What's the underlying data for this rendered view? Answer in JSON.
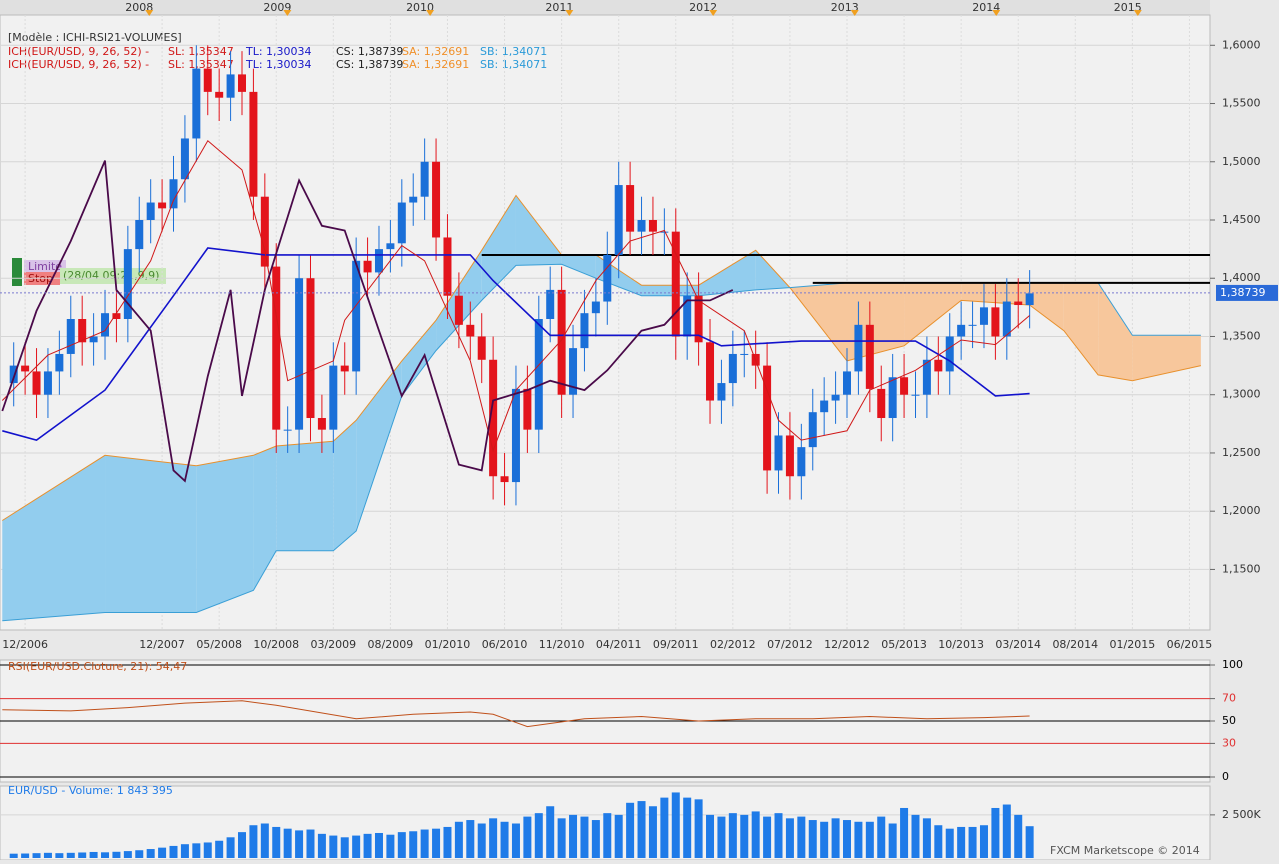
{
  "header": {
    "model": "[Modèle : ICHI-RSI21-VOLUMES]",
    "indicator_lines": [
      [
        "ICH(EUR/USD, 9, 26, 52) -",
        "SL: 1,35347",
        "TL: 1,30034",
        "CS: 1,38739",
        "SA: 1,32691",
        "SB: 1,34071"
      ],
      [
        "ICH(EUR/USD, 9, 26, 52) -",
        "SL: 1,35347",
        "TL: 1,30034",
        "CS: 1,38739",
        "SA: 1,32691",
        "SB: 1,34071"
      ]
    ],
    "indicator_colors": [
      "#d01818",
      "#d01818",
      "#1818c8",
      "#202020",
      "#f0902a",
      "#2a9ad8"
    ]
  },
  "orders": {
    "limit": "Limite",
    "stop": "Stop",
    "info": "(28/04 09:21,9,9)"
  },
  "chart_data": [
    {
      "type": "candlestick",
      "open": [
        1.31,
        1.325,
        1.32,
        1.3,
        1.32,
        1.335,
        1.365,
        1.345,
        1.35,
        1.37,
        1.365,
        1.425,
        1.45,
        1.465,
        1.46,
        1.485,
        1.52,
        1.58,
        1.56,
        1.555,
        1.575,
        1.56,
        1.47,
        1.41,
        1.27,
        1.27,
        1.4,
        1.28,
        1.27,
        1.325,
        1.32,
        1.415,
        1.405,
        1.425,
        1.43,
        1.465,
        1.47,
        1.5,
        1.435,
        1.385,
        1.36,
        1.35,
        1.33,
        1.23,
        1.225,
        1.305,
        1.27,
        1.365,
        1.39,
        1.3,
        1.34,
        1.37,
        1.38,
        1.42,
        1.48,
        1.44,
        1.45,
        1.44,
        1.44,
        1.35,
        1.385,
        1.345,
        1.295,
        1.31,
        1.335,
        1.335,
        1.325,
        1.235,
        1.265,
        1.23,
        1.255,
        1.285,
        1.295,
        1.3,
        1.32,
        1.36,
        1.305,
        1.28,
        1.315,
        1.3,
        1.3,
        1.33,
        1.32,
        1.35,
        1.36,
        1.36,
        1.375,
        1.35,
        1.38,
        1.377
      ],
      "high": [
        1.345,
        1.345,
        1.34,
        1.34,
        1.355,
        1.385,
        1.385,
        1.37,
        1.39,
        1.39,
        1.445,
        1.47,
        1.485,
        1.485,
        1.505,
        1.54,
        1.6,
        1.6,
        1.58,
        1.595,
        1.595,
        1.58,
        1.49,
        1.43,
        1.29,
        1.42,
        1.42,
        1.3,
        1.345,
        1.345,
        1.435,
        1.435,
        1.445,
        1.45,
        1.485,
        1.49,
        1.52,
        1.52,
        1.455,
        1.405,
        1.38,
        1.37,
        1.35,
        1.25,
        1.325,
        1.325,
        1.385,
        1.41,
        1.41,
        1.36,
        1.39,
        1.4,
        1.44,
        1.5,
        1.5,
        1.47,
        1.47,
        1.46,
        1.46,
        1.405,
        1.405,
        1.365,
        1.33,
        1.355,
        1.355,
        1.355,
        1.345,
        1.285,
        1.285,
        1.275,
        1.305,
        1.315,
        1.32,
        1.34,
        1.38,
        1.38,
        1.325,
        1.335,
        1.335,
        1.32,
        1.35,
        1.35,
        1.37,
        1.38,
        1.38,
        1.395,
        1.395,
        1.4,
        1.4,
        1.407
      ],
      "low": [
        1.29,
        1.3,
        1.28,
        1.28,
        1.3,
        1.315,
        1.325,
        1.325,
        1.33,
        1.345,
        1.345,
        1.405,
        1.43,
        1.44,
        1.44,
        1.465,
        1.5,
        1.54,
        1.535,
        1.535,
        1.54,
        1.45,
        1.39,
        1.25,
        1.25,
        1.25,
        1.26,
        1.25,
        1.25,
        1.3,
        1.3,
        1.385,
        1.385,
        1.405,
        1.41,
        1.445,
        1.45,
        1.415,
        1.365,
        1.34,
        1.33,
        1.31,
        1.21,
        1.205,
        1.205,
        1.25,
        1.25,
        1.345,
        1.28,
        1.28,
        1.32,
        1.35,
        1.36,
        1.4,
        1.42,
        1.42,
        1.42,
        1.42,
        1.33,
        1.33,
        1.325,
        1.275,
        1.275,
        1.29,
        1.315,
        1.305,
        1.215,
        1.215,
        1.21,
        1.21,
        1.235,
        1.265,
        1.275,
        1.28,
        1.3,
        1.285,
        1.26,
        1.26,
        1.28,
        1.28,
        1.28,
        1.3,
        1.3,
        1.33,
        1.34,
        1.34,
        1.33,
        1.33,
        1.357,
        1.357
      ],
      "close": [
        1.325,
        1.32,
        1.3,
        1.32,
        1.335,
        1.365,
        1.345,
        1.35,
        1.37,
        1.365,
        1.425,
        1.45,
        1.465,
        1.46,
        1.485,
        1.52,
        1.58,
        1.56,
        1.555,
        1.575,
        1.56,
        1.47,
        1.41,
        1.27,
        1.27,
        1.4,
        1.28,
        1.27,
        1.325,
        1.32,
        1.415,
        1.405,
        1.425,
        1.43,
        1.465,
        1.47,
        1.5,
        1.435,
        1.385,
        1.36,
        1.35,
        1.33,
        1.23,
        1.225,
        1.305,
        1.27,
        1.365,
        1.39,
        1.3,
        1.34,
        1.37,
        1.38,
        1.42,
        1.48,
        1.44,
        1.45,
        1.44,
        1.44,
        1.35,
        1.385,
        1.345,
        1.295,
        1.31,
        1.335,
        1.335,
        1.325,
        1.235,
        1.265,
        1.23,
        1.255,
        1.285,
        1.295,
        1.3,
        1.32,
        1.36,
        1.305,
        1.28,
        1.315,
        1.3,
        1.3,
        1.33,
        1.32,
        1.35,
        1.36,
        1.36,
        1.375,
        1.35,
        1.38,
        1.377,
        1.387
      ],
      "up_color": "#1a6fd8",
      "down_color": "#e3141c",
      "cloud": {
        "x": [
          -1,
          8,
          16,
          21,
          23,
          28,
          30,
          34,
          37,
          41,
          44,
          48,
          51,
          55,
          60,
          65,
          68,
          73,
          78,
          83,
          89,
          92,
          95,
          98,
          104
        ],
        "span_a": [
          1.192,
          1.248,
          1.239,
          1.248,
          1.256,
          1.26,
          1.278,
          1.329,
          1.364,
          1.424,
          1.471,
          1.42,
          1.42,
          1.394,
          1.394,
          1.424,
          1.392,
          1.329,
          1.342,
          1.381,
          1.377,
          1.355,
          1.317,
          1.312,
          1.325
        ],
        "span_b": [
          1.106,
          1.113,
          1.113,
          1.132,
          1.166,
          1.166,
          1.183,
          1.299,
          1.338,
          1.381,
          1.411,
          1.412,
          1.4,
          1.385,
          1.385,
          1.39,
          1.392,
          1.396,
          1.396,
          1.396,
          1.396,
          1.396,
          1.396,
          1.351,
          1.351
        ],
        "color_a": "#e8902c",
        "color_b": "#3a9fd6",
        "fill_up": "#92cdee",
        "fill_down": "#f7c79c"
      },
      "series": [
        {
          "color": "#1212cc",
          "x": [
            -1,
            2,
            8,
            14,
            17,
            22,
            40,
            42,
            47,
            60,
            62,
            69,
            79,
            82,
            86,
            89
          ],
          "values": [
            1.269,
            1.261,
            1.304,
            1.385,
            1.426,
            1.42,
            1.42,
            1.398,
            1.351,
            1.351,
            1.342,
            1.346,
            1.346,
            1.329,
            1.299,
            1.301
          ]
        },
        {
          "color": "#d01818",
          "x": [
            -1,
            3,
            8,
            12,
            14,
            17,
            20,
            22,
            24,
            28,
            29,
            34,
            36,
            40,
            42,
            44,
            48,
            51,
            54,
            57,
            60,
            64,
            67,
            69,
            73,
            75,
            79,
            83,
            86,
            89
          ],
          "values": [
            1.295,
            1.334,
            1.355,
            1.415,
            1.467,
            1.518,
            1.493,
            1.424,
            1.312,
            1.329,
            1.364,
            1.428,
            1.415,
            1.329,
            1.252,
            1.304,
            1.347,
            1.398,
            1.432,
            1.441,
            1.381,
            1.355,
            1.278,
            1.261,
            1.269,
            1.304,
            1.321,
            1.347,
            1.343,
            1.368
          ]
        },
        {
          "color": "#4a0a4a",
          "x": [
            -1,
            2,
            5,
            8,
            9,
            12,
            14,
            15,
            17,
            19,
            20,
            22,
            25,
            27,
            29,
            32,
            34,
            36,
            39,
            41,
            42,
            45,
            47,
            50,
            52,
            55,
            57,
            59,
            61,
            63
          ],
          "values": [
            1.286,
            1.372,
            1.432,
            1.501,
            1.39,
            1.355,
            1.235,
            1.226,
            1.316,
            1.39,
            1.299,
            1.39,
            1.484,
            1.445,
            1.441,
            1.355,
            1.299,
            1.334,
            1.24,
            1.235,
            1.295,
            1.304,
            1.312,
            1.304,
            1.321,
            1.355,
            1.36,
            1.381,
            1.381,
            1.39
          ]
        }
      ],
      "levels": [
        {
          "value": 1.42,
          "from": 41
        },
        {
          "value": 1.396,
          "from": 70
        }
      ],
      "level_color": "#000000",
      "last_price": {
        "value": 1.38739,
        "label": "1,38739"
      },
      "xlim": [
        -1.2,
        104.8
      ],
      "xticks": [
        {
          "value": 1,
          "label": "12/2006"
        },
        {
          "value": 13,
          "label": "12/2007"
        },
        {
          "value": 18,
          "label": "05/2008"
        },
        {
          "value": 23,
          "label": "10/2008"
        },
        {
          "value": 28,
          "label": "03/2009"
        },
        {
          "value": 33,
          "label": "08/2009"
        },
        {
          "value": 38,
          "label": "01/2010"
        },
        {
          "value": 43,
          "label": "06/2010"
        },
        {
          "value": 48,
          "label": "11/2010"
        },
        {
          "value": 53,
          "label": "04/2011"
        },
        {
          "value": 58,
          "label": "09/2011"
        },
        {
          "value": 63,
          "label": "02/2012"
        },
        {
          "value": 68,
          "label": "07/2012"
        },
        {
          "value": 73,
          "label": "12/2012"
        },
        {
          "value": 78,
          "label": "05/2013"
        },
        {
          "value": 83,
          "label": "10/2013"
        },
        {
          "value": 88,
          "label": "03/2014"
        },
        {
          "value": 93,
          "label": "08/2014"
        },
        {
          "value": 98,
          "label": "01/2015"
        },
        {
          "value": 103,
          "label": "06/2015"
        }
      ],
      "top_ticks": [
        {
          "value": 11,
          "label": "2008"
        },
        {
          "value": 23.1,
          "label": "2009"
        },
        {
          "value": 35.6,
          "label": "2010"
        },
        {
          "value": 47.8,
          "label": "2011"
        },
        {
          "value": 60.4,
          "label": "2012"
        },
        {
          "value": 72.8,
          "label": "2013"
        },
        {
          "value": 85.2,
          "label": "2014"
        },
        {
          "value": 97.6,
          "label": "2015"
        }
      ],
      "ylim": [
        1.098,
        1.626
      ],
      "yticks": [
        {
          "value": 1.15,
          "label": "1,1500"
        },
        {
          "value": 1.2,
          "label": "1,2000"
        },
        {
          "value": 1.25,
          "label": "1,2500"
        },
        {
          "value": 1.3,
          "label": "1,3000"
        },
        {
          "value": 1.35,
          "label": "1,3500"
        },
        {
          "value": 1.4,
          "label": "1,4000"
        },
        {
          "value": 1.45,
          "label": "1,4500"
        },
        {
          "value": 1.5,
          "label": "1,5000"
        },
        {
          "value": 1.55,
          "label": "1,5500"
        },
        {
          "value": 1.6,
          "label": "1,6000"
        }
      ],
      "grid": true
    },
    {
      "type": "line",
      "title": "RSI(EUR/USD.Cloture, 21): 54,47",
      "x": [
        -1,
        5,
        10,
        15,
        20,
        23,
        30,
        35,
        40,
        42,
        45,
        50,
        55,
        60,
        65,
        70,
        75,
        80,
        85,
        89
      ],
      "values": [
        60,
        59,
        62,
        66,
        68,
        64,
        52,
        56,
        58,
        56,
        45,
        52,
        54,
        50,
        52,
        52,
        54,
        52,
        53,
        54.5
      ],
      "color": "#c0501a",
      "xlim": [
        -1.2,
        104.8
      ],
      "ylim": [
        0,
        100
      ],
      "yticks": [
        0,
        30,
        50,
        70,
        100
      ],
      "tick_colors": [
        "#000000",
        "#e03030",
        "#000000",
        "#e03030",
        "#000000"
      ]
    },
    {
      "type": "bar",
      "title": "EUR/USD - Volume: 1 843 395",
      "values": [
        250000,
        260000,
        280000,
        300000,
        280000,
        300000,
        320000,
        350000,
        330000,
        360000,
        400000,
        450000,
        520000,
        600000,
        700000,
        800000,
        850000,
        900000,
        1000000,
        1200000,
        1500000,
        1900000,
        2000000,
        1800000,
        1700000,
        1600000,
        1650000,
        1400000,
        1300000,
        1200000,
        1300000,
        1400000,
        1450000,
        1350000,
        1500000,
        1550000,
        1650000,
        1700000,
        1800000,
        2100000,
        2200000,
        2000000,
        2300000,
        2100000,
        2000000,
        2400000,
        2600000,
        3000000,
        2300000,
        2500000,
        2400000,
        2200000,
        2600000,
        2500000,
        3200000,
        3300000,
        3000000,
        3500000,
        3800000,
        3500000,
        3400000,
        2500000,
        2400000,
        2600000,
        2500000,
        2700000,
        2400000,
        2600000,
        2300000,
        2400000,
        2200000,
        2100000,
        2300000,
        2200000,
        2100000,
        2100000,
        2400000,
        2000000,
        2900000,
        2500000,
        2300000,
        1900000,
        1700000,
        1800000,
        1800000,
        1900000,
        2900000,
        3100000,
        2500000,
        1843395
      ],
      "color": "#1f7be8",
      "xlim": [
        -1.2,
        104.8
      ],
      "ylim": [
        0,
        4000000
      ],
      "yticks": [
        {
          "value": 2500000,
          "label": "2 500K"
        }
      ]
    }
  ],
  "footer": "FXCM Marketscope © 2014"
}
